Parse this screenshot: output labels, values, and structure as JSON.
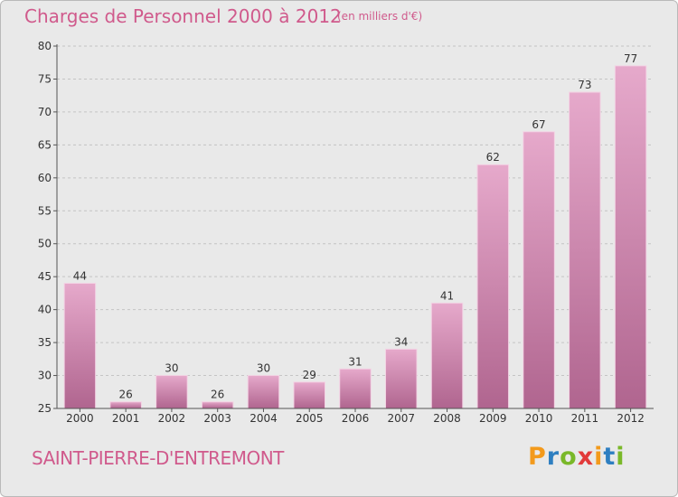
{
  "title": "Charges de Personnel 2000 à 2012",
  "subtitle": "(en milliers d'€)",
  "location": "SAINT-PIERRE-D'ENTREMONT",
  "brand": "Proxiti",
  "colors": {
    "accent": "#d05a8c",
    "bar_top": "#e6a9cb",
    "bar_bottom": "#b0658f",
    "background": "#e9e9e9",
    "brand_letters": [
      "#f39a1c",
      "#2e7fc1",
      "#7ab829",
      "#e23a3a",
      "#f39a1c",
      "#2e7fc1",
      "#7ab829"
    ]
  },
  "chart_data": {
    "type": "bar",
    "title": "Charges de Personnel 2000 à 2012",
    "subtitle": "(en milliers d'€)",
    "categories": [
      "2000",
      "2001",
      "2002",
      "2003",
      "2004",
      "2005",
      "2006",
      "2007",
      "2008",
      "2009",
      "2010",
      "2011",
      "2012"
    ],
    "values": [
      44,
      26,
      30,
      26,
      30,
      29,
      31,
      34,
      41,
      62,
      67,
      73,
      77
    ],
    "ylim": [
      25,
      80
    ],
    "yticks": [
      25,
      30,
      35,
      40,
      45,
      50,
      55,
      60,
      65,
      70,
      75,
      80
    ],
    "grid": true,
    "grid_style": "dashed"
  }
}
